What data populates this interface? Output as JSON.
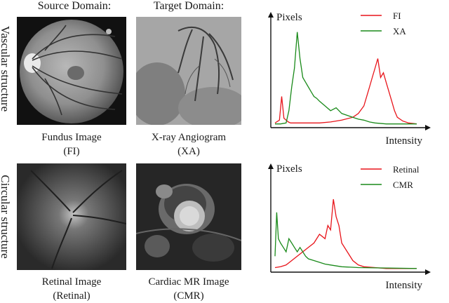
{
  "headers": {
    "source": "Source Domain:",
    "target": "Target Domain:"
  },
  "row_labels": {
    "vascular": "Vascular structure",
    "circular": "Circular structure"
  },
  "images": {
    "fi": {
      "line1": "Fundus Image",
      "line2": "(FI)"
    },
    "xa": {
      "line1": "X-ray Angiogram",
      "line2": "(XA)"
    },
    "ret": {
      "line1": "Retinal Image",
      "line2": "(Retinal)"
    },
    "cmr": {
      "line1": "Cardiac MR Image",
      "line2": "(CMR)"
    }
  },
  "colors": {
    "red": "#e8141a",
    "green": "#1a8a1a"
  },
  "chart_data": [
    {
      "type": "line",
      "ylabel": "Pixels",
      "xlabel": "Intensity",
      "xlim": [
        0,
        255
      ],
      "ylim": [
        0,
        1
      ],
      "legend": "top-right",
      "series": [
        {
          "name": "FI",
          "color": "#e8141a",
          "x": [
            0,
            8,
            12,
            16,
            20,
            24,
            28,
            32,
            40,
            60,
            80,
            100,
            120,
            140,
            150,
            160,
            170,
            175,
            180,
            185,
            190,
            195,
            200,
            205,
            210,
            215,
            220,
            230,
            240,
            255
          ],
          "values": [
            0.02,
            0.05,
            0.3,
            0.07,
            0.05,
            0.03,
            0.02,
            0.02,
            0.02,
            0.02,
            0.02,
            0.03,
            0.05,
            0.08,
            0.12,
            0.2,
            0.4,
            0.5,
            0.6,
            0.7,
            0.5,
            0.55,
            0.45,
            0.35,
            0.25,
            0.15,
            0.08,
            0.04,
            0.02,
            0.01
          ]
        },
        {
          "name": "XA",
          "color": "#1a8a1a",
          "x": [
            0,
            10,
            20,
            25,
            30,
            35,
            40,
            45,
            50,
            55,
            60,
            65,
            70,
            75,
            80,
            90,
            100,
            110,
            120,
            130,
            140,
            150,
            160,
            170,
            180,
            200,
            255
          ],
          "values": [
            0.01,
            0.01,
            0.02,
            0.15,
            0.4,
            0.6,
            0.98,
            0.7,
            0.5,
            0.45,
            0.4,
            0.35,
            0.3,
            0.28,
            0.25,
            0.2,
            0.15,
            0.18,
            0.12,
            0.1,
            0.08,
            0.06,
            0.05,
            0.03,
            0.02,
            0.01,
            0.01
          ]
        }
      ]
    },
    {
      "type": "line",
      "ylabel": "Pixels",
      "xlabel": "Intensity",
      "xlim": [
        0,
        255
      ],
      "ylim": [
        0,
        1
      ],
      "legend": "top-right",
      "series": [
        {
          "name": "Retinal",
          "color": "#e8141a",
          "x": [
            0,
            10,
            20,
            30,
            40,
            50,
            60,
            70,
            80,
            90,
            95,
            100,
            105,
            110,
            115,
            120,
            130,
            140,
            150,
            160,
            180,
            200,
            255
          ],
          "values": [
            0.02,
            0.03,
            0.05,
            0.1,
            0.15,
            0.2,
            0.25,
            0.3,
            0.4,
            0.35,
            0.5,
            0.45,
            0.8,
            0.6,
            0.5,
            0.3,
            0.2,
            0.1,
            0.05,
            0.03,
            0.02,
            0.01,
            0.01
          ]
        },
        {
          "name": "CMR",
          "color": "#1a8a1a",
          "x": [
            0,
            3,
            6,
            10,
            15,
            20,
            25,
            30,
            35,
            40,
            45,
            50,
            55,
            60,
            70,
            80,
            90,
            100,
            120,
            150,
            255
          ],
          "values": [
            0.15,
            0.65,
            0.35,
            0.3,
            0.25,
            0.2,
            0.35,
            0.3,
            0.25,
            0.2,
            0.25,
            0.2,
            0.15,
            0.12,
            0.1,
            0.08,
            0.06,
            0.05,
            0.03,
            0.02,
            0.01
          ]
        }
      ]
    }
  ]
}
